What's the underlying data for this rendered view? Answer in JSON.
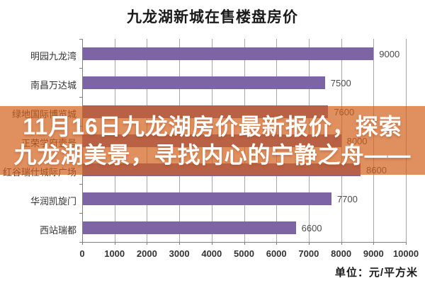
{
  "chart_data": {
    "type": "bar",
    "orientation": "horizontal",
    "title": "九龙湖新城在售楼盘房价",
    "categories": [
      "明园九龙湾",
      "南昌万达城",
      "绿地国际博览城",
      "正荣学府壹号",
      "红谷瑞仕城际广场",
      "华润凯旋门",
      "西站瑞都"
    ],
    "values": [
      9000,
      7500,
      7600,
      8000,
      8600,
      7700,
      6600
    ],
    "xlim": [
      0,
      10000
    ],
    "x_ticks": [
      0,
      1000,
      2000,
      3000,
      4000,
      5000,
      6000,
      7000,
      8000,
      9000,
      10000
    ],
    "xlabel": "",
    "ylabel": "",
    "unit_label": "单位：元/平方米",
    "grid": true,
    "legend": false,
    "bar_color": "#7C64A5",
    "gridline_color": "#a6a6a6",
    "axis_color": "#7f7f7f"
  },
  "overlay": {
    "line1": "11月16日九龙湖房价最新报价，探索",
    "line2": "九龙湖美景，寻找内心的宁静之舟——",
    "background_color": "rgba(211,95,27,0.70)",
    "text_color": "#ffffff"
  }
}
